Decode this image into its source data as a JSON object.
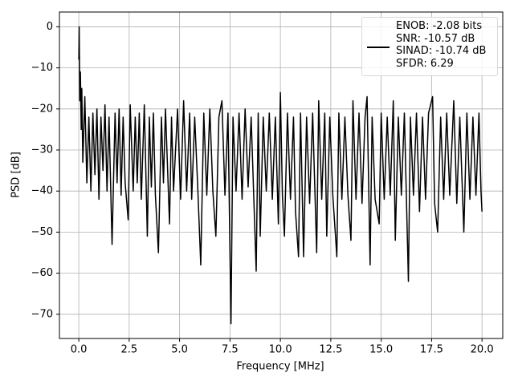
{
  "chart_data": {
    "type": "line",
    "xlabel": "Frequency [MHz]",
    "ylabel": "PSD [dB]",
    "x": [
      0,
      0.02,
      0.05,
      0.08,
      0.12,
      0.15,
      0.2,
      0.3,
      0.4,
      0.5,
      0.6,
      0.7,
      0.8,
      0.9,
      1.0,
      1.1,
      1.2,
      1.3,
      1.4,
      1.5,
      1.65,
      1.8,
      1.9,
      2.0,
      2.1,
      2.2,
      2.3,
      2.45,
      2.55,
      2.7,
      2.8,
      2.9,
      3.0,
      3.1,
      3.25,
      3.4,
      3.5,
      3.6,
      3.7,
      3.8,
      3.95,
      4.1,
      4.2,
      4.3,
      4.5,
      4.6,
      4.7,
      4.9,
      5.05,
      5.2,
      5.35,
      5.5,
      5.6,
      5.75,
      5.9,
      6.05,
      6.2,
      6.35,
      6.5,
      6.65,
      6.8,
      6.95,
      7.1,
      7.25,
      7.4,
      7.55,
      7.65,
      7.8,
      7.95,
      8.1,
      8.25,
      8.4,
      8.55,
      8.8,
      8.9,
      9.0,
      9.15,
      9.3,
      9.45,
      9.6,
      9.75,
      9.9,
      10.0,
      10.1,
      10.2,
      10.35,
      10.5,
      10.65,
      10.75,
      10.9,
      11.0,
      11.15,
      11.3,
      11.45,
      11.6,
      11.8,
      11.9,
      12.05,
      12.2,
      12.3,
      12.45,
      12.6,
      12.8,
      12.9,
      13.05,
      13.2,
      13.35,
      13.5,
      13.6,
      13.75,
      13.9,
      14.05,
      14.2,
      14.3,
      14.45,
      14.55,
      14.7,
      14.9,
      15.0,
      15.15,
      15.3,
      15.45,
      15.6,
      15.7,
      15.85,
      16.0,
      16.15,
      16.35,
      16.45,
      16.6,
      16.75,
      16.9,
      17.05,
      17.2,
      17.35,
      17.55,
      17.65,
      17.8,
      17.95,
      18.1,
      18.25,
      18.4,
      18.6,
      18.75,
      18.9,
      19.1,
      19.25,
      19.4,
      19.55,
      19.7,
      19.85,
      19.95,
      20.0
    ],
    "series": [
      {
        "name": "ENOB: -2.08 bits\nSNR: -10.57 dB\nSINAD: -10.74 dB\nSFDR: 6.29",
        "color": "#000000",
        "values": [
          -8,
          0,
          -18,
          -11,
          -25,
          -15,
          -33,
          -17,
          -38,
          -22,
          -40,
          -21,
          -36,
          -20,
          -42,
          -22,
          -35,
          -19,
          -40,
          -22,
          -53,
          -21,
          -38,
          -20,
          -41,
          -22,
          -38,
          -47,
          -19,
          -40,
          -22,
          -38,
          -21,
          -42,
          -19,
          -51,
          -22,
          -39,
          -21,
          -41,
          -55,
          -22,
          -38,
          -20,
          -48,
          -22,
          -40,
          -20,
          -42,
          -18,
          -40,
          -21,
          -42,
          -22,
          -39,
          -58,
          -21,
          -41,
          -20,
          -40,
          -51,
          -22,
          -18,
          -41,
          -21,
          -72.3,
          -22,
          -40,
          -21,
          -42,
          -20,
          -39,
          -22,
          -59.5,
          -21,
          -51,
          -22,
          -40,
          -21,
          -42,
          -22,
          -48,
          -16,
          -41,
          -51,
          -21,
          -42,
          -22,
          -45,
          -56,
          -21,
          -56,
          -22,
          -43,
          -21,
          -55,
          -18,
          -42,
          -21,
          -51,
          -22,
          -41,
          -56,
          -21,
          -42,
          -22,
          -41,
          -52,
          -18,
          -42,
          -21,
          -43,
          -22,
          -17,
          -58,
          -22,
          -42,
          -48,
          -21,
          -42,
          -22,
          -41,
          -18,
          -52,
          -22,
          -41,
          -21,
          -62,
          -22,
          -41,
          -21,
          -45,
          -22,
          -42,
          -21,
          -17,
          -43,
          -50,
          -22,
          -42,
          -21,
          -41,
          -18,
          -43,
          -22,
          -50,
          -21,
          -42,
          -22,
          -41,
          -21,
          -40,
          -45
        ]
      }
    ],
    "xlim": [
      -0.96,
      21.03
    ],
    "ylim": [
      -75.9,
      3.6
    ],
    "xticks": [
      {
        "value": 0,
        "label": "0.0"
      },
      2.5,
      {
        "value": 5,
        "label": "5.0"
      },
      7.5,
      {
        "value": 10,
        "label": "10.0"
      },
      12.5,
      {
        "value": 15,
        "label": "15.0"
      },
      17.5,
      {
        "value": 20,
        "label": "20.0"
      }
    ],
    "yticks": [
      {
        "value": -70,
        "label": "−70"
      },
      {
        "value": -60,
        "label": "−60"
      },
      {
        "value": -50,
        "label": "−50"
      },
      {
        "value": -40,
        "label": "−40"
      },
      {
        "value": -30,
        "label": "−30"
      },
      {
        "value": -20,
        "label": "−20"
      },
      {
        "value": -10,
        "label": "−10"
      },
      0
    ],
    "grid": true,
    "legend": "upper right"
  }
}
